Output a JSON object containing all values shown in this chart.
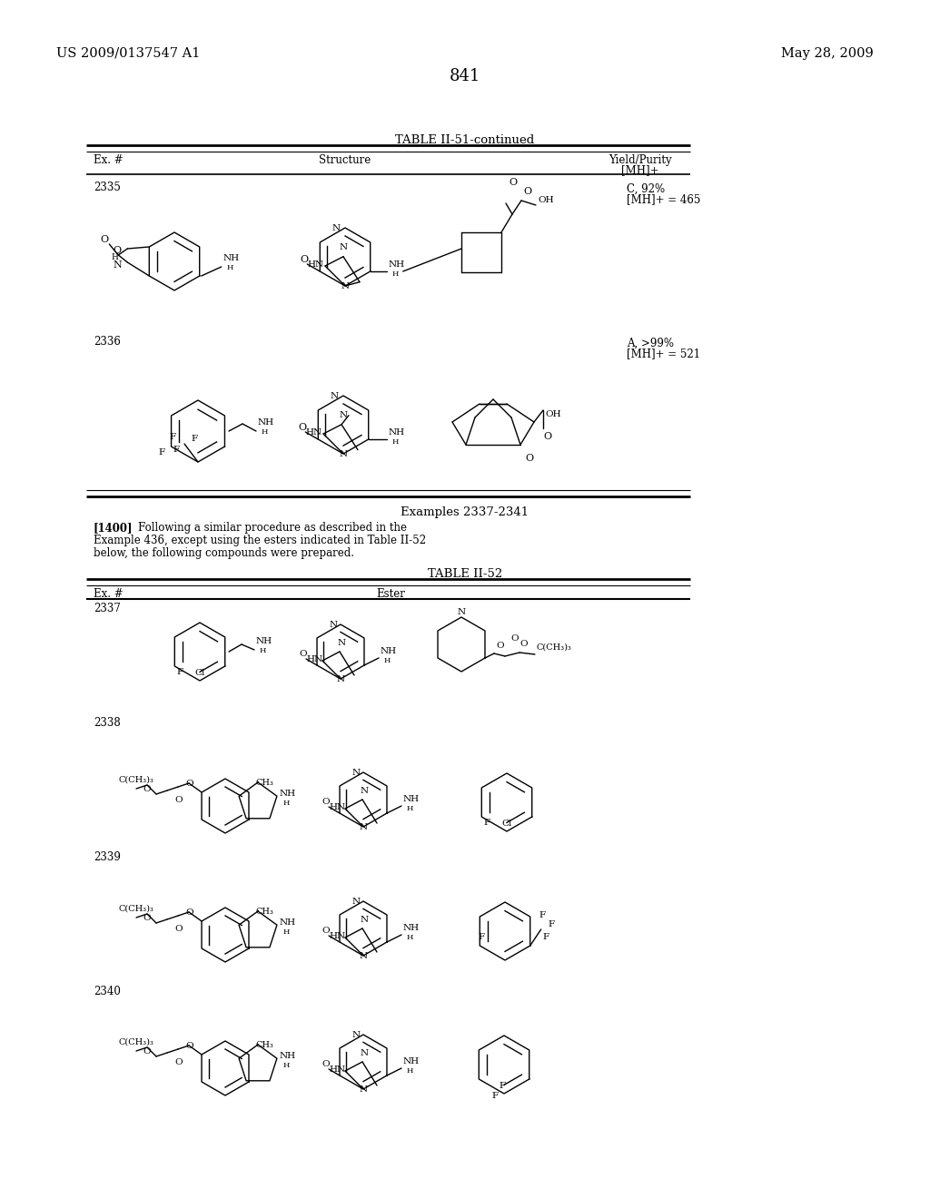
{
  "bg": "#ffffff",
  "header_left": "US 2009/0137547 A1",
  "header_right": "May 28, 2009",
  "page_num": "841",
  "t1_title": "TABLE II-51-continued",
  "t2_title": "TABLE II-52",
  "ex_header": "Examples 2337-2341",
  "para_label": "[1400]",
  "para_body": "Following a similar procedure as described in the\nExample 436, except using the esters indicated in Table II-52\nbelow, the following compounds were prepared.",
  "col1": "Ex. #",
  "col2_t1": "Structure",
  "col3_t1": "Yield/Purity\n[MH]+",
  "col2_t2": "Ester",
  "ex2335": "2335",
  "ex2335_yield": "C, 92%\n[MH]+ = 465",
  "ex2336": "2336",
  "ex2336_yield": "A, >99%\n[MH]+ = 521",
  "ex2337": "2337",
  "ex2338": "2338",
  "ex2339": "2339",
  "ex2340": "2340"
}
